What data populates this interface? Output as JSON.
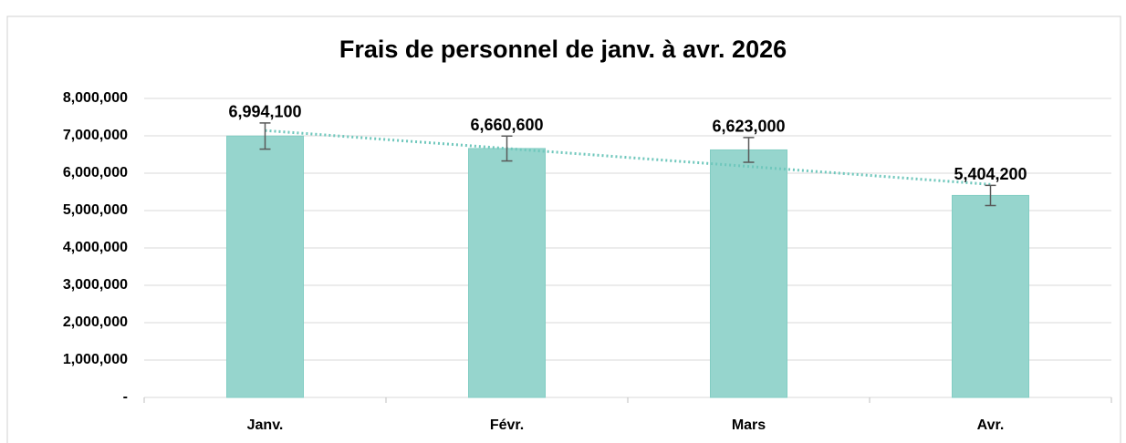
{
  "chart_data": {
    "type": "bar",
    "title": "Frais de personnel de janv. à avr. 2026",
    "categories": [
      "Janv.",
      "Févr.",
      "Mars",
      "Avr."
    ],
    "values": [
      6994100,
      6660600,
      6623000,
      5404200
    ],
    "value_labels": [
      "6,994,100",
      "6,660,600",
      "6,623,000",
      "5,404,200"
    ],
    "errors": [
      350000,
      333000,
      331000,
      270000
    ],
    "color": "#96d5cd",
    "ylim": [
      0,
      8000000
    ],
    "yticks": [
      {
        "value": 0,
        "label": "-"
      },
      {
        "value": 1000000,
        "label": "1,000,000"
      },
      {
        "value": 2000000,
        "label": "2,000,000"
      },
      {
        "value": 3000000,
        "label": "3,000,000"
      },
      {
        "value": 4000000,
        "label": "4,000,000"
      },
      {
        "value": 5000000,
        "label": "5,000,000"
      },
      {
        "value": 6000000,
        "label": "6,000,000"
      },
      {
        "value": 7000000,
        "label": "7,000,000"
      },
      {
        "value": 8000000,
        "label": "8,000,000"
      }
    ],
    "grid": true,
    "trendline": "linear",
    "trendline_color": "#6fc7bc"
  }
}
